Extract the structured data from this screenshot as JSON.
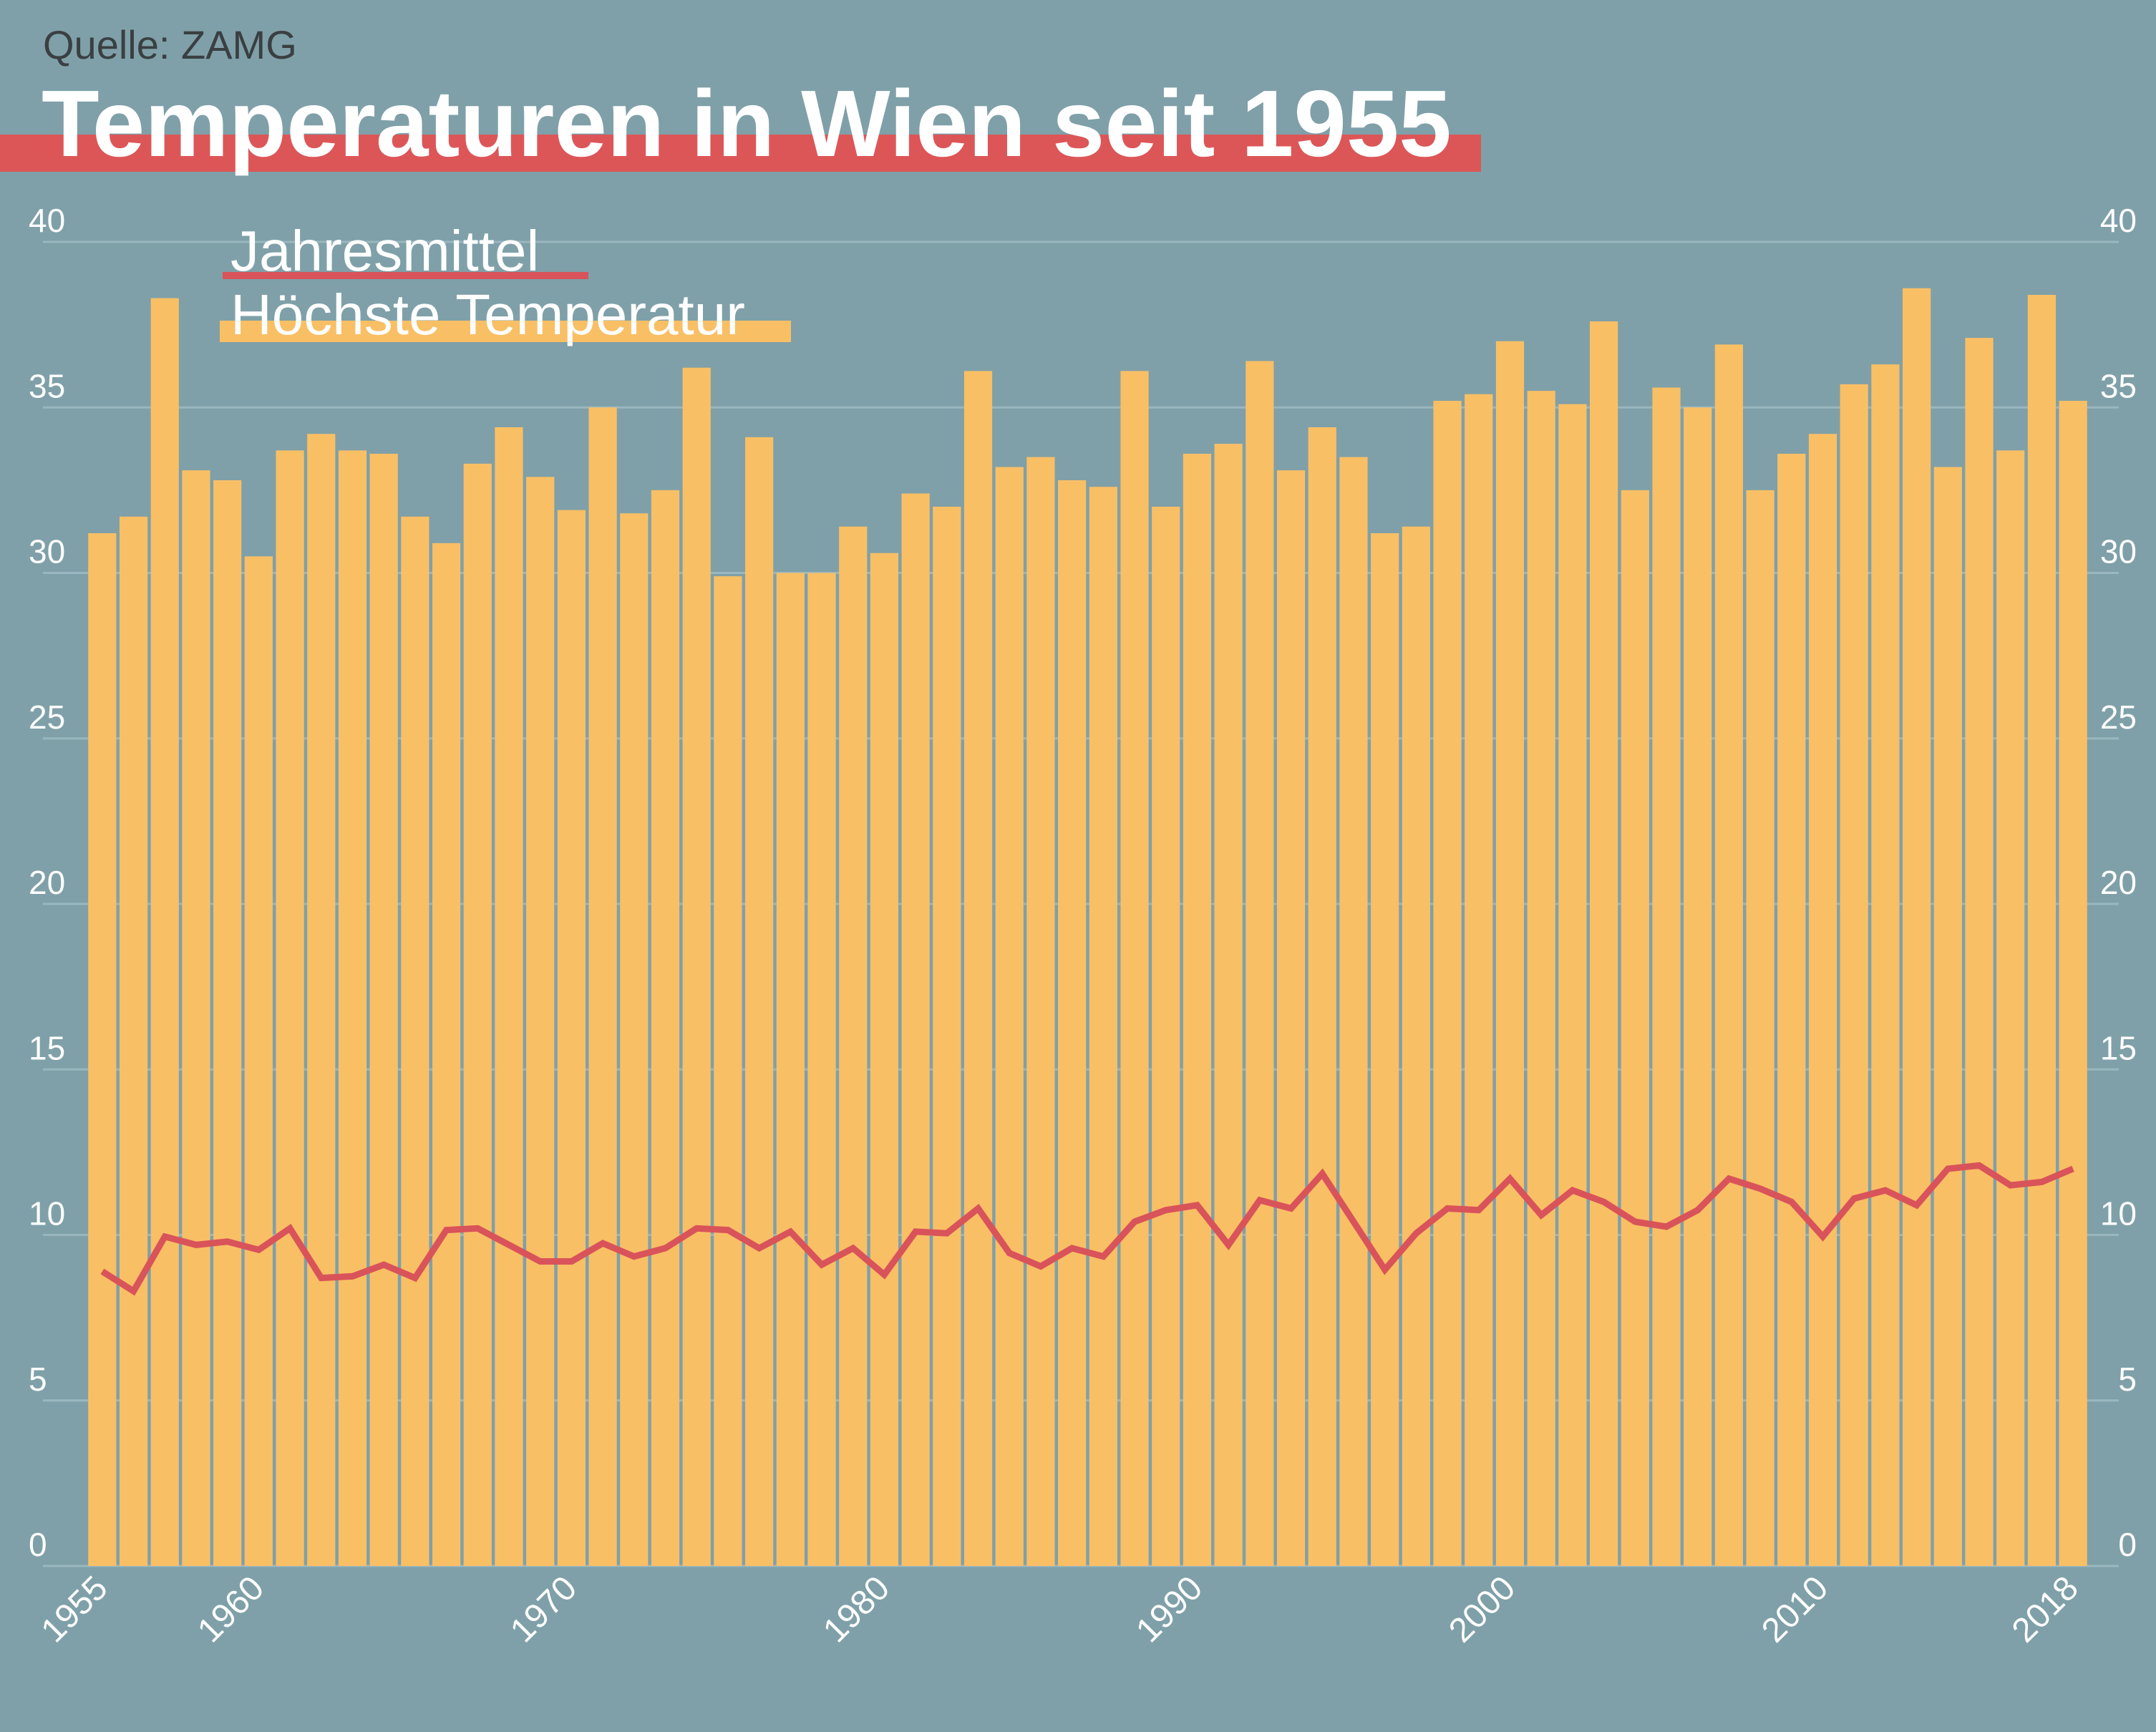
{
  "source": "Quelle: ZAMG",
  "title": "Temperaturen in Wien seit 1955",
  "colors": {
    "background": "#7fa0a8",
    "bars": "#f9bf65",
    "line": "#d9535a",
    "title_bar": "#dc5658",
    "grid": "#9ab7bf",
    "text": "#ffffff",
    "source_text": "#3a3f42"
  },
  "chart_data": {
    "type": "bar+line",
    "title": "Temperaturen in Wien seit 1955",
    "ylim": [
      0,
      40
    ],
    "y_ticks": [
      0,
      5,
      10,
      15,
      20,
      25,
      30,
      35,
      40
    ],
    "y_tick_labels": [
      "0",
      "5",
      "10",
      "15",
      "20",
      "25",
      "30",
      "35",
      "40"
    ],
    "y_axis_sides": "left and right",
    "x_tick_labels": [
      "1955",
      "1960",
      "1970",
      "1980",
      "1990",
      "2000",
      "2010",
      "2018"
    ],
    "grid": "horizontal",
    "legend_placement": "top-left",
    "x": [
      1955,
      1956,
      1957,
      1958,
      1959,
      1960,
      1961,
      1962,
      1963,
      1964,
      1965,
      1966,
      1967,
      1968,
      1969,
      1970,
      1971,
      1972,
      1973,
      1974,
      1975,
      1976,
      1977,
      1978,
      1979,
      1980,
      1981,
      1982,
      1983,
      1984,
      1985,
      1986,
      1987,
      1988,
      1989,
      1990,
      1991,
      1992,
      1993,
      1994,
      1995,
      1996,
      1997,
      1998,
      1999,
      2000,
      2001,
      2002,
      2003,
      2004,
      2005,
      2006,
      2007,
      2008,
      2009,
      2010,
      2011,
      2012,
      2013,
      2014,
      2015,
      2016,
      2017,
      2018
    ],
    "series": [
      {
        "name": "Höchste Temperatur",
        "type": "bar",
        "values": [
          31.2,
          31.7,
          38.3,
          33.1,
          32.8,
          30.5,
          33.7,
          34.2,
          33.7,
          33.6,
          31.7,
          30.9,
          33.3,
          34.4,
          32.9,
          31.9,
          35.0,
          31.8,
          32.5,
          36.2,
          29.9,
          34.1,
          30.0,
          30.0,
          31.4,
          30.6,
          32.4,
          32.0,
          36.1,
          33.2,
          33.5,
          32.8,
          32.6,
          36.1,
          32.0,
          33.6,
          33.9,
          36.4,
          33.1,
          34.4,
          33.5,
          31.2,
          31.4,
          35.2,
          35.4,
          37.0,
          35.5,
          35.1,
          37.6,
          32.5,
          35.6,
          35.0,
          36.9,
          32.5,
          33.6,
          34.2,
          35.7,
          36.3,
          38.6,
          33.2,
          37.1,
          33.7,
          38.4,
          35.2
        ]
      },
      {
        "name": "Jahresmittel",
        "type": "line",
        "values": [
          8.9,
          8.3,
          9.95,
          9.7,
          9.8,
          9.55,
          10.2,
          8.7,
          8.75,
          9.1,
          8.7,
          10.15,
          10.2,
          9.7,
          9.2,
          9.2,
          9.75,
          9.35,
          9.6,
          10.2,
          10.15,
          9.6,
          10.1,
          9.1,
          9.6,
          8.8,
          10.1,
          10.05,
          10.8,
          9.45,
          9.05,
          9.6,
          9.35,
          10.4,
          10.75,
          10.9,
          9.7,
          11.05,
          10.8,
          11.85,
          10.4,
          8.95,
          10.05,
          10.8,
          10.75,
          11.7,
          10.6,
          11.35,
          11.0,
          10.4,
          10.25,
          10.75,
          11.7,
          11.4,
          11.0,
          9.95,
          11.1,
          11.35,
          10.9,
          12.0,
          12.1,
          11.5,
          11.6,
          12.0
        ]
      }
    ]
  }
}
